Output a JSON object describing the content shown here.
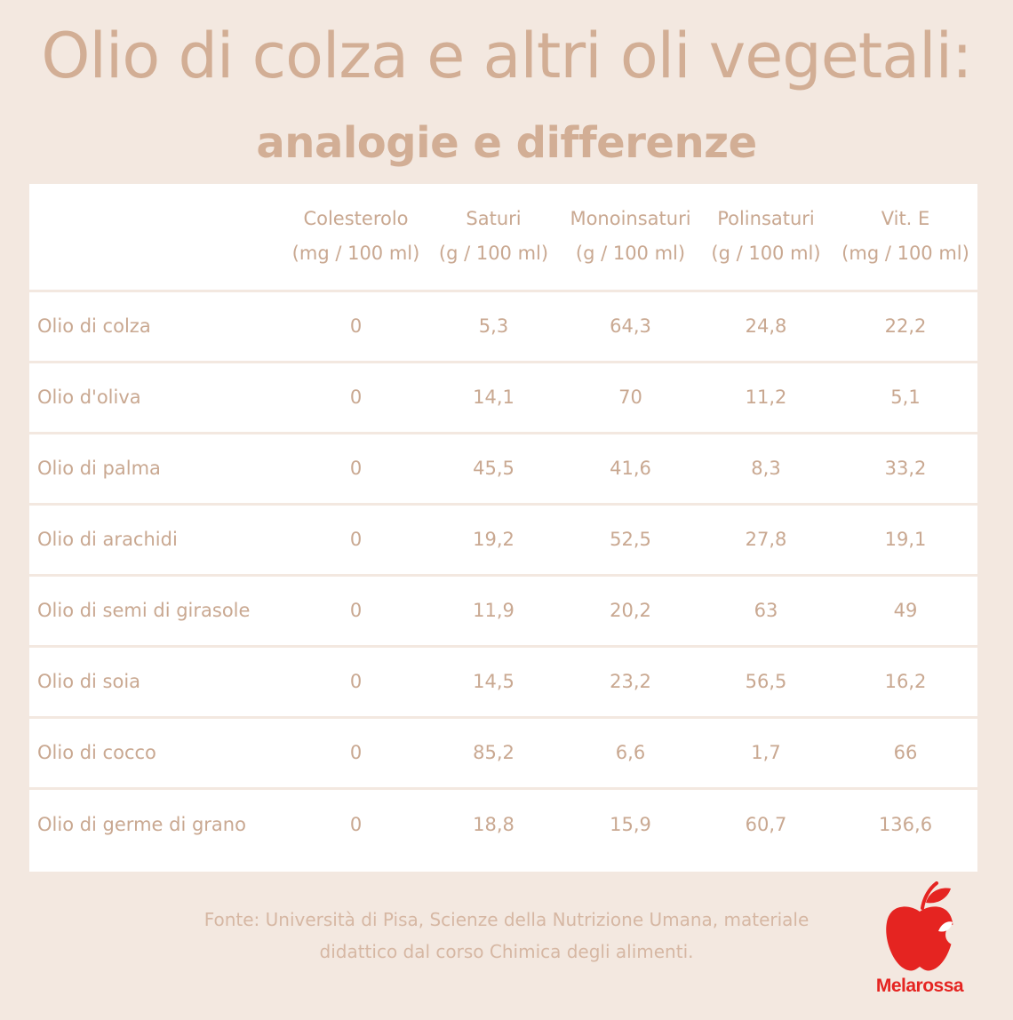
{
  "title": "Olio di colza e altri oli vegetali:",
  "subtitle": "analogie e differenze",
  "table": {
    "columns": [
      {
        "label": "Colesterolo",
        "unit": "(mg / 100 ml)"
      },
      {
        "label": "Saturi",
        "unit": "(g / 100 ml)"
      },
      {
        "label": "Monoinsaturi",
        "unit": "(g / 100 ml)"
      },
      {
        "label": "Polinsaturi",
        "unit": "(g / 100 ml)"
      },
      {
        "label": "Vit. E",
        "unit": "(mg / 100 ml)"
      }
    ],
    "rows": [
      {
        "name": "Olio di colza",
        "values": [
          "0",
          "5,3",
          "64,3",
          "24,8",
          "22,2"
        ]
      },
      {
        "name": "Olio d'oliva",
        "values": [
          "0",
          "14,1",
          "70",
          "11,2",
          "5,1"
        ]
      },
      {
        "name": "Olio di palma",
        "values": [
          "0",
          "45,5",
          "41,6",
          "8,3",
          "33,2"
        ]
      },
      {
        "name": "Olio di arachidi",
        "values": [
          "0",
          "19,2",
          "52,5",
          "27,8",
          "19,1"
        ]
      },
      {
        "name": "Olio di semi di girasole",
        "values": [
          "0",
          "11,9",
          "20,2",
          "63",
          "49"
        ]
      },
      {
        "name": "Olio di soia",
        "values": [
          "0",
          "14,5",
          "23,2",
          "56,5",
          "16,2"
        ]
      },
      {
        "name": "Olio di cocco",
        "values": [
          "0",
          "85,2",
          "6,6",
          "1,7",
          "66"
        ]
      },
      {
        "name": "Olio di germe di grano",
        "values": [
          "0",
          "18,8",
          "15,9",
          "60,7",
          "136,6"
        ]
      }
    ]
  },
  "source": {
    "line1": "Fonte: Università di Pisa, Scienze della Nutrizione Umana, materiale",
    "line2": "didattico dal corso Chimica degli alimenti."
  },
  "logo": {
    "text": "Melarossa",
    "icon": "apple-icon",
    "color": "#e52421"
  },
  "colors": {
    "background": "#f3e8e0",
    "text": "#c9a891",
    "card": "#ffffff"
  }
}
